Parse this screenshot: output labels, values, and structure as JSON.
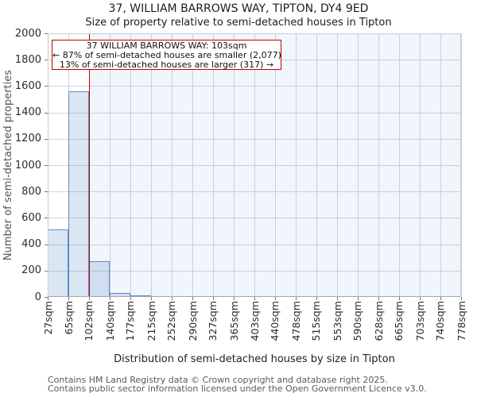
{
  "page": {
    "title": "37, WILLIAM BARROWS WAY, TIPTON, DY4 9ED",
    "subtitle": "Size of property relative to semi-detached houses in Tipton"
  },
  "annotation": {
    "title": "37 WILLIAM BARROWS WAY: 103sqm",
    "smaller": "← 87% of semi-detached houses are smaller (2,077)",
    "larger": "13% of semi-detached houses are larger (317) →"
  },
  "footer": {
    "line1": "Contains HM Land Registry data © Crown copyright and database right 2025.",
    "line2": "Contains public sector information licensed under the Open Government Licence v3.0."
  },
  "chart_data": {
    "type": "bar",
    "title": "37, WILLIAM BARROWS WAY, TIPTON, DY4 9ED",
    "subtitle": "Size of property relative to semi-detached houses in Tipton",
    "xlabel": "Distribution of semi-detached houses by size in Tipton",
    "ylabel": "Number of semi-detached properties",
    "ylim": [
      0,
      2000
    ],
    "ytick_step": 200,
    "grid": true,
    "tick_label_suffix": "sqm",
    "bin_edges": [
      27,
      65,
      102,
      140,
      177,
      215,
      252,
      290,
      327,
      365,
      403,
      440,
      478,
      515,
      553,
      590,
      628,
      665,
      703,
      740,
      778
    ],
    "values": [
      510,
      1560,
      270,
      30,
      10,
      0,
      0,
      0,
      0,
      0,
      0,
      0,
      0,
      0,
      0,
      0,
      0,
      0,
      0,
      0
    ],
    "marker_value": 103,
    "marker_label": "37 WILLIAM BARROWS WAY: 103sqm",
    "pct_smaller": 87,
    "count_smaller": 2077,
    "pct_larger": 13,
    "count_larger": 317,
    "colors": {
      "bar_fill": "rgba(91,140,200,0.22)",
      "bar_edge": "#5b8cc8",
      "marker": "#bb0000",
      "annotation_border": "#bb0000",
      "region_fill": "#f1f5fc",
      "grid": "#d5dae2"
    }
  }
}
